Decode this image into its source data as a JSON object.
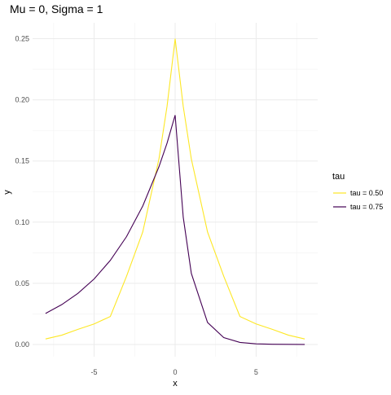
{
  "chart_data": {
    "type": "line",
    "title": "Mu = 0, Sigma = 1",
    "xlabel": "x",
    "ylabel": "y",
    "xlim": [
      -8.8,
      8.8
    ],
    "ylim": [
      -0.01,
      0.263
    ],
    "x_ticks": [
      -5,
      0,
      5
    ],
    "x_tick_labels": [
      "-5",
      "0",
      "5"
    ],
    "y_ticks": [
      0.0,
      0.05,
      0.1,
      0.15,
      0.2,
      0.25
    ],
    "y_tick_labels": [
      "0.00",
      "0.05",
      "0.10",
      "0.15",
      "0.20",
      "0.25"
    ],
    "grid": true,
    "legend": {
      "title": "tau",
      "position": "right"
    },
    "x": [
      -8,
      -7,
      -6,
      -5,
      -4,
      -3,
      -2,
      -1,
      -0.5,
      0,
      0.5,
      1,
      2,
      3,
      4,
      5,
      6,
      7,
      8
    ],
    "series": [
      {
        "name": "tau = 0.50",
        "color": "#FDE725",
        "values": [
          0.0045,
          0.0076,
          0.0124,
          0.0168,
          0.0229,
          0.0558,
          0.092,
          0.1516,
          0.1947,
          0.25,
          0.1947,
          0.1516,
          0.092,
          0.0558,
          0.0229,
          0.0168,
          0.0124,
          0.0076,
          0.0045
        ]
      },
      {
        "name": "tau = 0.75",
        "color": "#440154",
        "values": [
          0.0254,
          0.0326,
          0.0418,
          0.0536,
          0.0688,
          0.0882,
          0.1132,
          0.1453,
          0.1646,
          0.1875,
          0.1041,
          0.0581,
          0.018,
          0.0056,
          0.0017,
          0.0005,
          0.0002,
          0.0001,
          0.0
        ]
      }
    ]
  }
}
